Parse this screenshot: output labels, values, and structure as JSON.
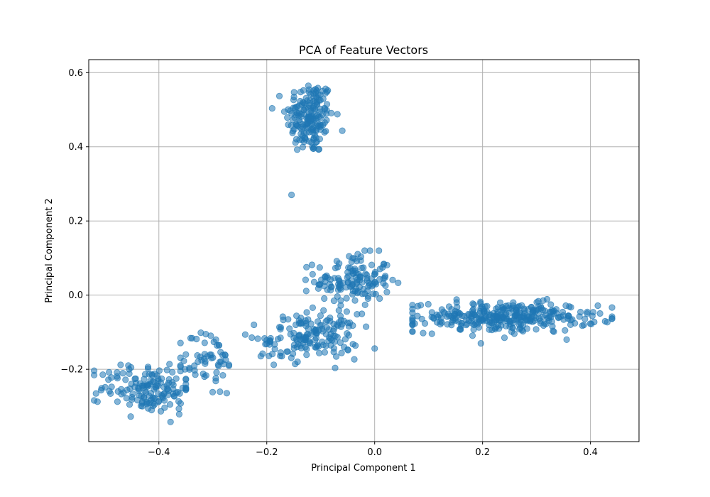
{
  "chart_data": {
    "type": "scatter",
    "title": "PCA of Feature Vectors",
    "xlabel": "Principal Component 1",
    "ylabel": "Principal Component 2",
    "xlim": [
      -0.53,
      0.49
    ],
    "ylim": [
      -0.395,
      0.635
    ],
    "grid": true,
    "point_color": "#1f77b4",
    "point_alpha": 0.55,
    "x_ticks": [
      -0.4,
      -0.2,
      0.0,
      0.2,
      0.4
    ],
    "x_tick_labels": [
      "−0.4",
      "−0.2",
      "0.0",
      "0.2",
      "0.4"
    ],
    "y_ticks": [
      -0.2,
      0.0,
      0.2,
      0.4,
      0.6
    ],
    "y_tick_labels": [
      "−0.2",
      "0.0",
      "0.2",
      "0.4",
      "0.6"
    ],
    "clusters": [
      {
        "center": [
          -0.12,
          0.48
        ],
        "spread": [
          0.022,
          0.05
        ],
        "n": 180,
        "x_range": [
          -0.19,
          -0.06
        ],
        "y_range": [
          0.17,
          0.59
        ]
      },
      {
        "center": [
          -0.04,
          0.04
        ],
        "spread": [
          0.035,
          0.035
        ],
        "n": 140,
        "x_range": [
          -0.15,
          0.05
        ],
        "y_range": [
          -0.05,
          0.12
        ]
      },
      {
        "center": [
          -0.11,
          -0.11
        ],
        "spread": [
          0.04,
          0.03
        ],
        "n": 150,
        "x_range": [
          -0.2,
          0.0
        ],
        "y_range": [
          -0.24,
          0.02
        ]
      },
      {
        "center": [
          0.24,
          -0.06
        ],
        "spread": [
          0.085,
          0.02
        ],
        "n": 330,
        "x_range": [
          0.07,
          0.44
        ],
        "y_range": [
          -0.13,
          0.07
        ]
      },
      {
        "center": [
          -0.42,
          -0.25
        ],
        "spread": [
          0.045,
          0.035
        ],
        "n": 150,
        "x_range": [
          -0.52,
          -0.35
        ],
        "y_range": [
          -0.35,
          -0.16
        ]
      },
      {
        "center": [
          -0.31,
          -0.18
        ],
        "spread": [
          0.025,
          0.045
        ],
        "n": 60,
        "x_range": [
          -0.36,
          -0.27
        ],
        "y_range": [
          -0.27,
          -0.06
        ]
      },
      {
        "center": [
          -0.2,
          -0.14
        ],
        "spread": [
          0.02,
          0.03
        ],
        "n": 16,
        "x_range": [
          -0.24,
          -0.17
        ],
        "y_range": [
          -0.21,
          -0.08
        ]
      }
    ]
  }
}
